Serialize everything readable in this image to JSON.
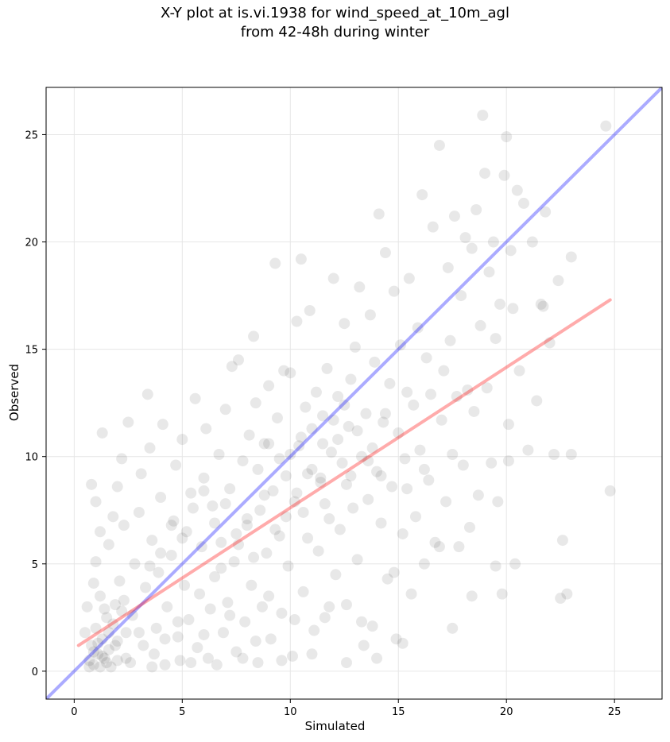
{
  "chart_data": {
    "type": "scatter",
    "title_line1": "X-Y plot at is.vi.1938 for wind_speed_at_10m_agl",
    "title_line2": "from 42-48h during winter",
    "xlabel": "Simulated",
    "ylabel": "Observed",
    "xlim": [
      -1.3,
      27.2
    ],
    "ylim": [
      -1.3,
      27.2
    ],
    "xticks": [
      0,
      5,
      10,
      15,
      20,
      25
    ],
    "yticks": [
      0,
      5,
      10,
      15,
      20,
      25
    ],
    "grid": true,
    "point_color": "#000000",
    "point_alpha": 0.09,
    "identity_line": {
      "x": [
        -1.3,
        27.2
      ],
      "y": [
        -1.3,
        27.2
      ],
      "color": "#0000ff",
      "alpha": 0.33
    },
    "fit_line": {
      "x": [
        0.2,
        24.8
      ],
      "y": [
        1.2,
        17.3
      ],
      "color": "#ff0000",
      "alpha": 0.33
    },
    "points": [
      [
        0.5,
        1.8
      ],
      [
        0.7,
        0.5
      ],
      [
        0.8,
        1.2
      ],
      [
        0.9,
        0.3
      ],
      [
        1.0,
        2.0
      ],
      [
        1.1,
        0.8
      ],
      [
        1.2,
        0.2
      ],
      [
        1.3,
        1.5
      ],
      [
        1.4,
        0.6
      ],
      [
        1.5,
        2.5
      ],
      [
        0.6,
        3.0
      ],
      [
        0.9,
        4.1
      ],
      [
        1.0,
        5.1
      ],
      [
        1.2,
        3.5
      ],
      [
        1.4,
        2.9
      ],
      [
        1.6,
        1.0
      ],
      [
        1.7,
        0.2
      ],
      [
        1.8,
        2.2
      ],
      [
        1.9,
        3.1
      ],
      [
        2.0,
        0.5
      ],
      [
        0.8,
        8.7
      ],
      [
        1.0,
        7.9
      ],
      [
        1.3,
        11.1
      ],
      [
        1.2,
        6.5
      ],
      [
        1.6,
        5.9
      ],
      [
        1.8,
        7.2
      ],
      [
        2.0,
        8.6
      ],
      [
        2.2,
        9.9
      ],
      [
        2.5,
        11.6
      ],
      [
        2.3,
        6.8
      ],
      [
        2.1,
        4.2
      ],
      [
        2.3,
        3.3
      ],
      [
        2.4,
        1.8
      ],
      [
        2.6,
        0.4
      ],
      [
        2.7,
        2.6
      ],
      [
        2.8,
        5.0
      ],
      [
        3.0,
        7.4
      ],
      [
        3.1,
        9.2
      ],
      [
        3.2,
        1.2
      ],
      [
        3.3,
        3.9
      ],
      [
        3.4,
        12.9
      ],
      [
        3.5,
        10.4
      ],
      [
        3.6,
        6.1
      ],
      [
        3.7,
        0.8
      ],
      [
        3.8,
        2.0
      ],
      [
        3.9,
        4.6
      ],
      [
        4.0,
        8.1
      ],
      [
        4.1,
        11.5
      ],
      [
        4.2,
        0.3
      ],
      [
        4.3,
        3.0
      ],
      [
        4.5,
        5.4
      ],
      [
        4.6,
        7.0
      ],
      [
        4.7,
        9.6
      ],
      [
        4.8,
        1.6
      ],
      [
        4.9,
        0.5
      ],
      [
        5.0,
        10.8
      ],
      [
        5.1,
        4.0
      ],
      [
        5.2,
        6.5
      ],
      [
        5.3,
        2.4
      ],
      [
        5.4,
        8.3
      ],
      [
        5.6,
        12.7
      ],
      [
        5.7,
        1.1
      ],
      [
        5.8,
        3.6
      ],
      [
        5.9,
        5.8
      ],
      [
        6.0,
        9.0
      ],
      [
        6.1,
        11.3
      ],
      [
        6.2,
        0.6
      ],
      [
        6.3,
        2.9
      ],
      [
        6.4,
        7.7
      ],
      [
        6.5,
        4.4
      ],
      [
        6.7,
        10.1
      ],
      [
        6.8,
        6.0
      ],
      [
        6.9,
        1.8
      ],
      [
        7.0,
        12.2
      ],
      [
        7.1,
        3.2
      ],
      [
        7.2,
        8.5
      ],
      [
        7.3,
        14.2
      ],
      [
        7.4,
        5.1
      ],
      [
        7.5,
        0.9
      ],
      [
        7.6,
        14.5
      ],
      [
        7.8,
        9.8
      ],
      [
        7.9,
        2.3
      ],
      [
        8.0,
        6.8
      ],
      [
        8.1,
        11.0
      ],
      [
        8.2,
        4.0
      ],
      [
        8.3,
        15.6
      ],
      [
        8.4,
        12.5
      ],
      [
        8.5,
        0.4
      ],
      [
        8.6,
        7.5
      ],
      [
        8.7,
        3.0
      ],
      [
        8.8,
        10.6
      ],
      [
        8.9,
        5.5
      ],
      [
        9.0,
        13.3
      ],
      [
        9.1,
        1.5
      ],
      [
        9.2,
        8.4
      ],
      [
        9.3,
        19.0
      ],
      [
        9.4,
        11.8
      ],
      [
        9.5,
        6.3
      ],
      [
        9.6,
        2.7
      ],
      [
        9.7,
        14.0
      ],
      [
        9.8,
        9.1
      ],
      [
        9.9,
        4.9
      ],
      [
        10.0,
        13.9
      ],
      [
        10.1,
        0.7
      ],
      [
        10.2,
        7.9
      ],
      [
        10.3,
        16.3
      ],
      [
        10.4,
        10.5
      ],
      [
        10.5,
        19.2
      ],
      [
        10.6,
        3.7
      ],
      [
        10.7,
        12.3
      ],
      [
        10.8,
        6.2
      ],
      [
        10.9,
        16.8
      ],
      [
        11.0,
        9.4
      ],
      [
        11.1,
        1.9
      ],
      [
        11.2,
        13.0
      ],
      [
        11.3,
        5.6
      ],
      [
        11.4,
        8.8
      ],
      [
        11.5,
        11.9
      ],
      [
        11.6,
        2.5
      ],
      [
        11.7,
        14.1
      ],
      [
        11.8,
        7.1
      ],
      [
        11.9,
        10.2
      ],
      [
        12.0,
        18.3
      ],
      [
        12.1,
        4.5
      ],
      [
        12.2,
        12.8
      ],
      [
        12.3,
        6.6
      ],
      [
        12.4,
        9.7
      ],
      [
        12.5,
        16.2
      ],
      [
        12.6,
        3.1
      ],
      [
        12.7,
        11.4
      ],
      [
        12.8,
        13.6
      ],
      [
        12.9,
        7.6
      ],
      [
        13.0,
        15.1
      ],
      [
        13.1,
        5.2
      ],
      [
        13.2,
        17.9
      ],
      [
        13.3,
        10.0
      ],
      [
        13.4,
        1.2
      ],
      [
        13.5,
        12.0
      ],
      [
        13.6,
        8.0
      ],
      [
        13.7,
        16.6
      ],
      [
        13.8,
        2.1
      ],
      [
        13.9,
        14.4
      ],
      [
        14.0,
        9.3
      ],
      [
        14.1,
        21.3
      ],
      [
        14.2,
        6.9
      ],
      [
        14.3,
        11.6
      ],
      [
        14.4,
        19.5
      ],
      [
        14.5,
        4.3
      ],
      [
        14.6,
        13.4
      ],
      [
        14.7,
        8.6
      ],
      [
        14.8,
        17.7
      ],
      [
        14.9,
        1.5
      ],
      [
        15.0,
        11.1
      ],
      [
        15.1,
        15.2
      ],
      [
        15.2,
        6.4
      ],
      [
        15.3,
        9.9
      ],
      [
        15.4,
        13.0
      ],
      [
        15.5,
        18.3
      ],
      [
        15.6,
        3.6
      ],
      [
        15.7,
        12.4
      ],
      [
        15.8,
        7.2
      ],
      [
        15.9,
        16.0
      ],
      [
        16.0,
        10.3
      ],
      [
        16.1,
        22.2
      ],
      [
        16.2,
        5.0
      ],
      [
        16.3,
        14.6
      ],
      [
        16.4,
        8.9
      ],
      [
        16.5,
        12.9
      ],
      [
        16.6,
        20.7
      ],
      [
        16.7,
        6.0
      ],
      [
        16.9,
        24.5
      ],
      [
        17.0,
        11.7
      ],
      [
        17.1,
        14.0
      ],
      [
        17.2,
        7.9
      ],
      [
        17.3,
        18.8
      ],
      [
        17.4,
        15.4
      ],
      [
        17.5,
        10.1
      ],
      [
        17.6,
        21.2
      ],
      [
        17.7,
        12.8
      ],
      [
        17.8,
        5.8
      ],
      [
        17.9,
        17.5
      ],
      [
        18.0,
        9.6
      ],
      [
        18.1,
        20.2
      ],
      [
        18.2,
        13.1
      ],
      [
        18.3,
        6.7
      ],
      [
        18.4,
        19.7
      ],
      [
        18.5,
        12.1
      ],
      [
        18.6,
        21.5
      ],
      [
        18.7,
        8.2
      ],
      [
        18.8,
        16.1
      ],
      [
        18.9,
        25.9
      ],
      [
        19.0,
        23.2
      ],
      [
        19.1,
        13.2
      ],
      [
        19.2,
        18.6
      ],
      [
        19.3,
        9.7
      ],
      [
        19.4,
        20.0
      ],
      [
        19.5,
        15.5
      ],
      [
        19.6,
        7.9
      ],
      [
        19.7,
        17.1
      ],
      [
        19.8,
        3.6
      ],
      [
        19.9,
        23.1
      ],
      [
        20.0,
        24.9
      ],
      [
        20.1,
        11.5
      ],
      [
        20.2,
        19.6
      ],
      [
        20.3,
        16.9
      ],
      [
        20.4,
        5.0
      ],
      [
        20.5,
        22.4
      ],
      [
        20.6,
        14.0
      ],
      [
        20.8,
        21.8
      ],
      [
        21.0,
        10.3
      ],
      [
        21.2,
        20.0
      ],
      [
        21.4,
        12.6
      ],
      [
        21.6,
        17.1
      ],
      [
        21.8,
        21.4
      ],
      [
        22.0,
        15.3
      ],
      [
        22.2,
        10.1
      ],
      [
        22.4,
        18.2
      ],
      [
        22.6,
        6.1
      ],
      [
        22.8,
        3.6
      ],
      [
        23.0,
        19.3
      ],
      [
        22.5,
        3.4
      ],
      [
        23.0,
        10.1
      ],
      [
        24.6,
        25.4
      ],
      [
        24.8,
        8.4
      ],
      [
        21.7,
        17.0
      ],
      [
        20.1,
        9.8
      ],
      [
        19.5,
        4.9
      ],
      [
        18.4,
        3.5
      ],
      [
        17.5,
        2.0
      ],
      [
        16.9,
        5.8
      ],
      [
        15.2,
        1.3
      ],
      [
        14.8,
        4.6
      ],
      [
        14.0,
        0.6
      ],
      [
        13.3,
        2.3
      ],
      [
        12.6,
        0.4
      ],
      [
        11.8,
        3.0
      ],
      [
        11.0,
        0.8
      ],
      [
        10.2,
        2.4
      ],
      [
        9.6,
        0.5
      ],
      [
        9.0,
        3.5
      ],
      [
        8.4,
        1.4
      ],
      [
        7.8,
        0.6
      ],
      [
        7.2,
        2.6
      ],
      [
        6.6,
        0.3
      ],
      [
        6.0,
        1.7
      ],
      [
        5.4,
        0.4
      ],
      [
        4.8,
        2.3
      ],
      [
        4.2,
        1.5
      ],
      [
        3.6,
        0.2
      ],
      [
        3.0,
        1.8
      ],
      [
        2.4,
        0.6
      ],
      [
        1.9,
        1.2
      ],
      [
        1.5,
        0.4
      ],
      [
        1.1,
        1.3
      ],
      [
        0.9,
        0.9
      ],
      [
        0.7,
        0.2
      ],
      [
        1.3,
        0.7
      ],
      [
        1.6,
        1.8
      ],
      [
        2.0,
        1.4
      ],
      [
        2.2,
        2.8
      ],
      [
        10.0,
        10.1
      ],
      [
        10.5,
        10.9
      ],
      [
        11.0,
        11.3
      ],
      [
        11.5,
        10.6
      ],
      [
        12.0,
        11.7
      ],
      [
        12.5,
        12.4
      ],
      [
        9.5,
        9.9
      ],
      [
        9.0,
        10.6
      ],
      [
        8.5,
        9.4
      ],
      [
        10.8,
        9.2
      ],
      [
        12.2,
        10.8
      ],
      [
        13.1,
        11.2
      ],
      [
        13.8,
        10.4
      ],
      [
        14.4,
        12.0
      ],
      [
        11.4,
        9.0
      ],
      [
        10.3,
        8.3
      ],
      [
        9.8,
        7.2
      ],
      [
        8.8,
        8.2
      ],
      [
        12.8,
        9.1
      ],
      [
        13.6,
        9.8
      ],
      [
        6.5,
        6.9
      ],
      [
        7.0,
        7.8
      ],
      [
        7.5,
        6.4
      ],
      [
        8.0,
        7.1
      ],
      [
        6.0,
        8.4
      ],
      [
        5.5,
        7.6
      ],
      [
        5.0,
        6.2
      ],
      [
        4.5,
        6.8
      ],
      [
        4.0,
        5.5
      ],
      [
        3.5,
        4.9
      ],
      [
        6.8,
        4.8
      ],
      [
        7.6,
        5.9
      ],
      [
        8.3,
        5.3
      ],
      [
        9.3,
        6.6
      ],
      [
        10.6,
        7.4
      ],
      [
        11.6,
        7.8
      ],
      [
        12.6,
        8.7
      ],
      [
        14.2,
        9.1
      ],
      [
        15.4,
        8.5
      ],
      [
        16.2,
        9.4
      ]
    ]
  }
}
